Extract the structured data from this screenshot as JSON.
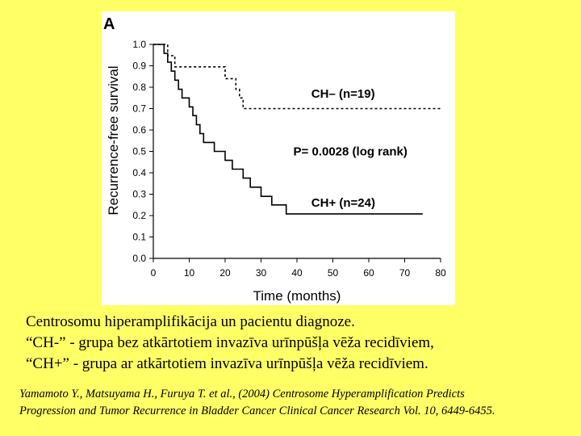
{
  "chart_data": {
    "type": "line",
    "panel_label": "A",
    "xlabel": "Time (months)",
    "ylabel": "Recurrence-free survival",
    "xlim": [
      0,
      80
    ],
    "ylim": [
      0,
      1
    ],
    "xticks": [
      0,
      10,
      20,
      30,
      40,
      50,
      60,
      70,
      80
    ],
    "yticks": [
      0.0,
      0.1,
      0.2,
      0.3,
      0.4,
      0.5,
      0.6,
      0.7,
      0.8,
      0.9,
      1.0
    ],
    "ytick_labels": [
      "0.0",
      "0.1",
      "0.2",
      "0.3",
      "0.4",
      "0.5",
      "0.6",
      "0.7",
      "0.8",
      "0.9",
      "1.0"
    ],
    "grid": false,
    "series": [
      {
        "name": "CH– (n=19)",
        "style": "dashed",
        "steps": [
          [
            0,
            1.0
          ],
          [
            4,
            1.0
          ],
          [
            4,
            0.947
          ],
          [
            6,
            0.947
          ],
          [
            6,
            0.895
          ],
          [
            20,
            0.895
          ],
          [
            20,
            0.84
          ],
          [
            23,
            0.84
          ],
          [
            23,
            0.79
          ],
          [
            24,
            0.79
          ],
          [
            24,
            0.75
          ],
          [
            25,
            0.75
          ],
          [
            25,
            0.7
          ],
          [
            80,
            0.7
          ]
        ]
      },
      {
        "name": "CH+ (n=24)",
        "style": "solid",
        "steps": [
          [
            0,
            1.0
          ],
          [
            3,
            1.0
          ],
          [
            3,
            0.958
          ],
          [
            4,
            0.958
          ],
          [
            4,
            0.917
          ],
          [
            5,
            0.917
          ],
          [
            5,
            0.875
          ],
          [
            6,
            0.875
          ],
          [
            6,
            0.833
          ],
          [
            7,
            0.833
          ],
          [
            7,
            0.79
          ],
          [
            8,
            0.79
          ],
          [
            8,
            0.75
          ],
          [
            10,
            0.75
          ],
          [
            10,
            0.708
          ],
          [
            11,
            0.708
          ],
          [
            11,
            0.667
          ],
          [
            12,
            0.667
          ],
          [
            12,
            0.625
          ],
          [
            13,
            0.625
          ],
          [
            13,
            0.583
          ],
          [
            14,
            0.583
          ],
          [
            14,
            0.542
          ],
          [
            17,
            0.542
          ],
          [
            17,
            0.5
          ],
          [
            20,
            0.5
          ],
          [
            20,
            0.458
          ],
          [
            22,
            0.458
          ],
          [
            22,
            0.417
          ],
          [
            25,
            0.417
          ],
          [
            25,
            0.375
          ],
          [
            27,
            0.375
          ],
          [
            27,
            0.333
          ],
          [
            30,
            0.333
          ],
          [
            30,
            0.29
          ],
          [
            33,
            0.29
          ],
          [
            33,
            0.25
          ],
          [
            37,
            0.25
          ],
          [
            37,
            0.208
          ],
          [
            75,
            0.208
          ]
        ]
      }
    ],
    "annotations": [
      {
        "text": "CH– (n=19)",
        "x": 44,
        "y": 0.77
      },
      {
        "text": "P= 0.0028 (log rank)",
        "x": 39,
        "y": 0.5
      },
      {
        "text": "CH+ (n=24)",
        "x": 44,
        "y": 0.26
      }
    ]
  },
  "caption": {
    "line1": "Centrosomu hiperamplifikācija un pacientu diagnoze.",
    "line2": "“CH-” - grupa bez atkārtotiem invazīva urīnpūšļa vēža recidīviem,",
    "line3": "“CH+” - grupa ar atkārtotiem invazīva urīnpūšļa vēža recidīviem."
  },
  "reference": {
    "line1": "Yamamoto Y., Matsuyama H., Furuya T. et al., (2004) Centrosome Hyperamplification Predicts",
    "line2": "Progression and Tumor Recurrence in Bladder Cancer Clinical Cancer Research Vol. 10, 6449-6455."
  }
}
